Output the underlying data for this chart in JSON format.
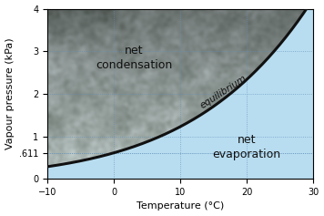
{
  "xlabel": "Temperature (°C)",
  "ylabel": "Vapour pressure (kPa)",
  "xlim": [
    -10,
    30
  ],
  "ylim": [
    0,
    4
  ],
  "xticks": [
    -10,
    0,
    10,
    20,
    30
  ],
  "yticks": [
    0,
    1,
    2,
    3,
    4
  ],
  "extra_ytick": 0.611,
  "extra_ytick_label": ".611",
  "grid_color": "#6090bb",
  "curve_color": "#111111",
  "curve_linewidth": 2.2,
  "below_color": "#b8ddf0",
  "label_condensation": "net\ncondensation",
  "label_evaporation": "net\nevaporation",
  "label_equilibrium": "equilibrium",
  "condensation_x": 3,
  "condensation_y": 2.85,
  "evaporation_x": 20,
  "evaporation_y": 0.75,
  "equilibrium_T": 13,
  "font_size_labels": 9,
  "font_size_axis": 8,
  "font_size_ticks": 7,
  "figwidth": 3.56,
  "figheight": 2.37,
  "dpi": 100
}
